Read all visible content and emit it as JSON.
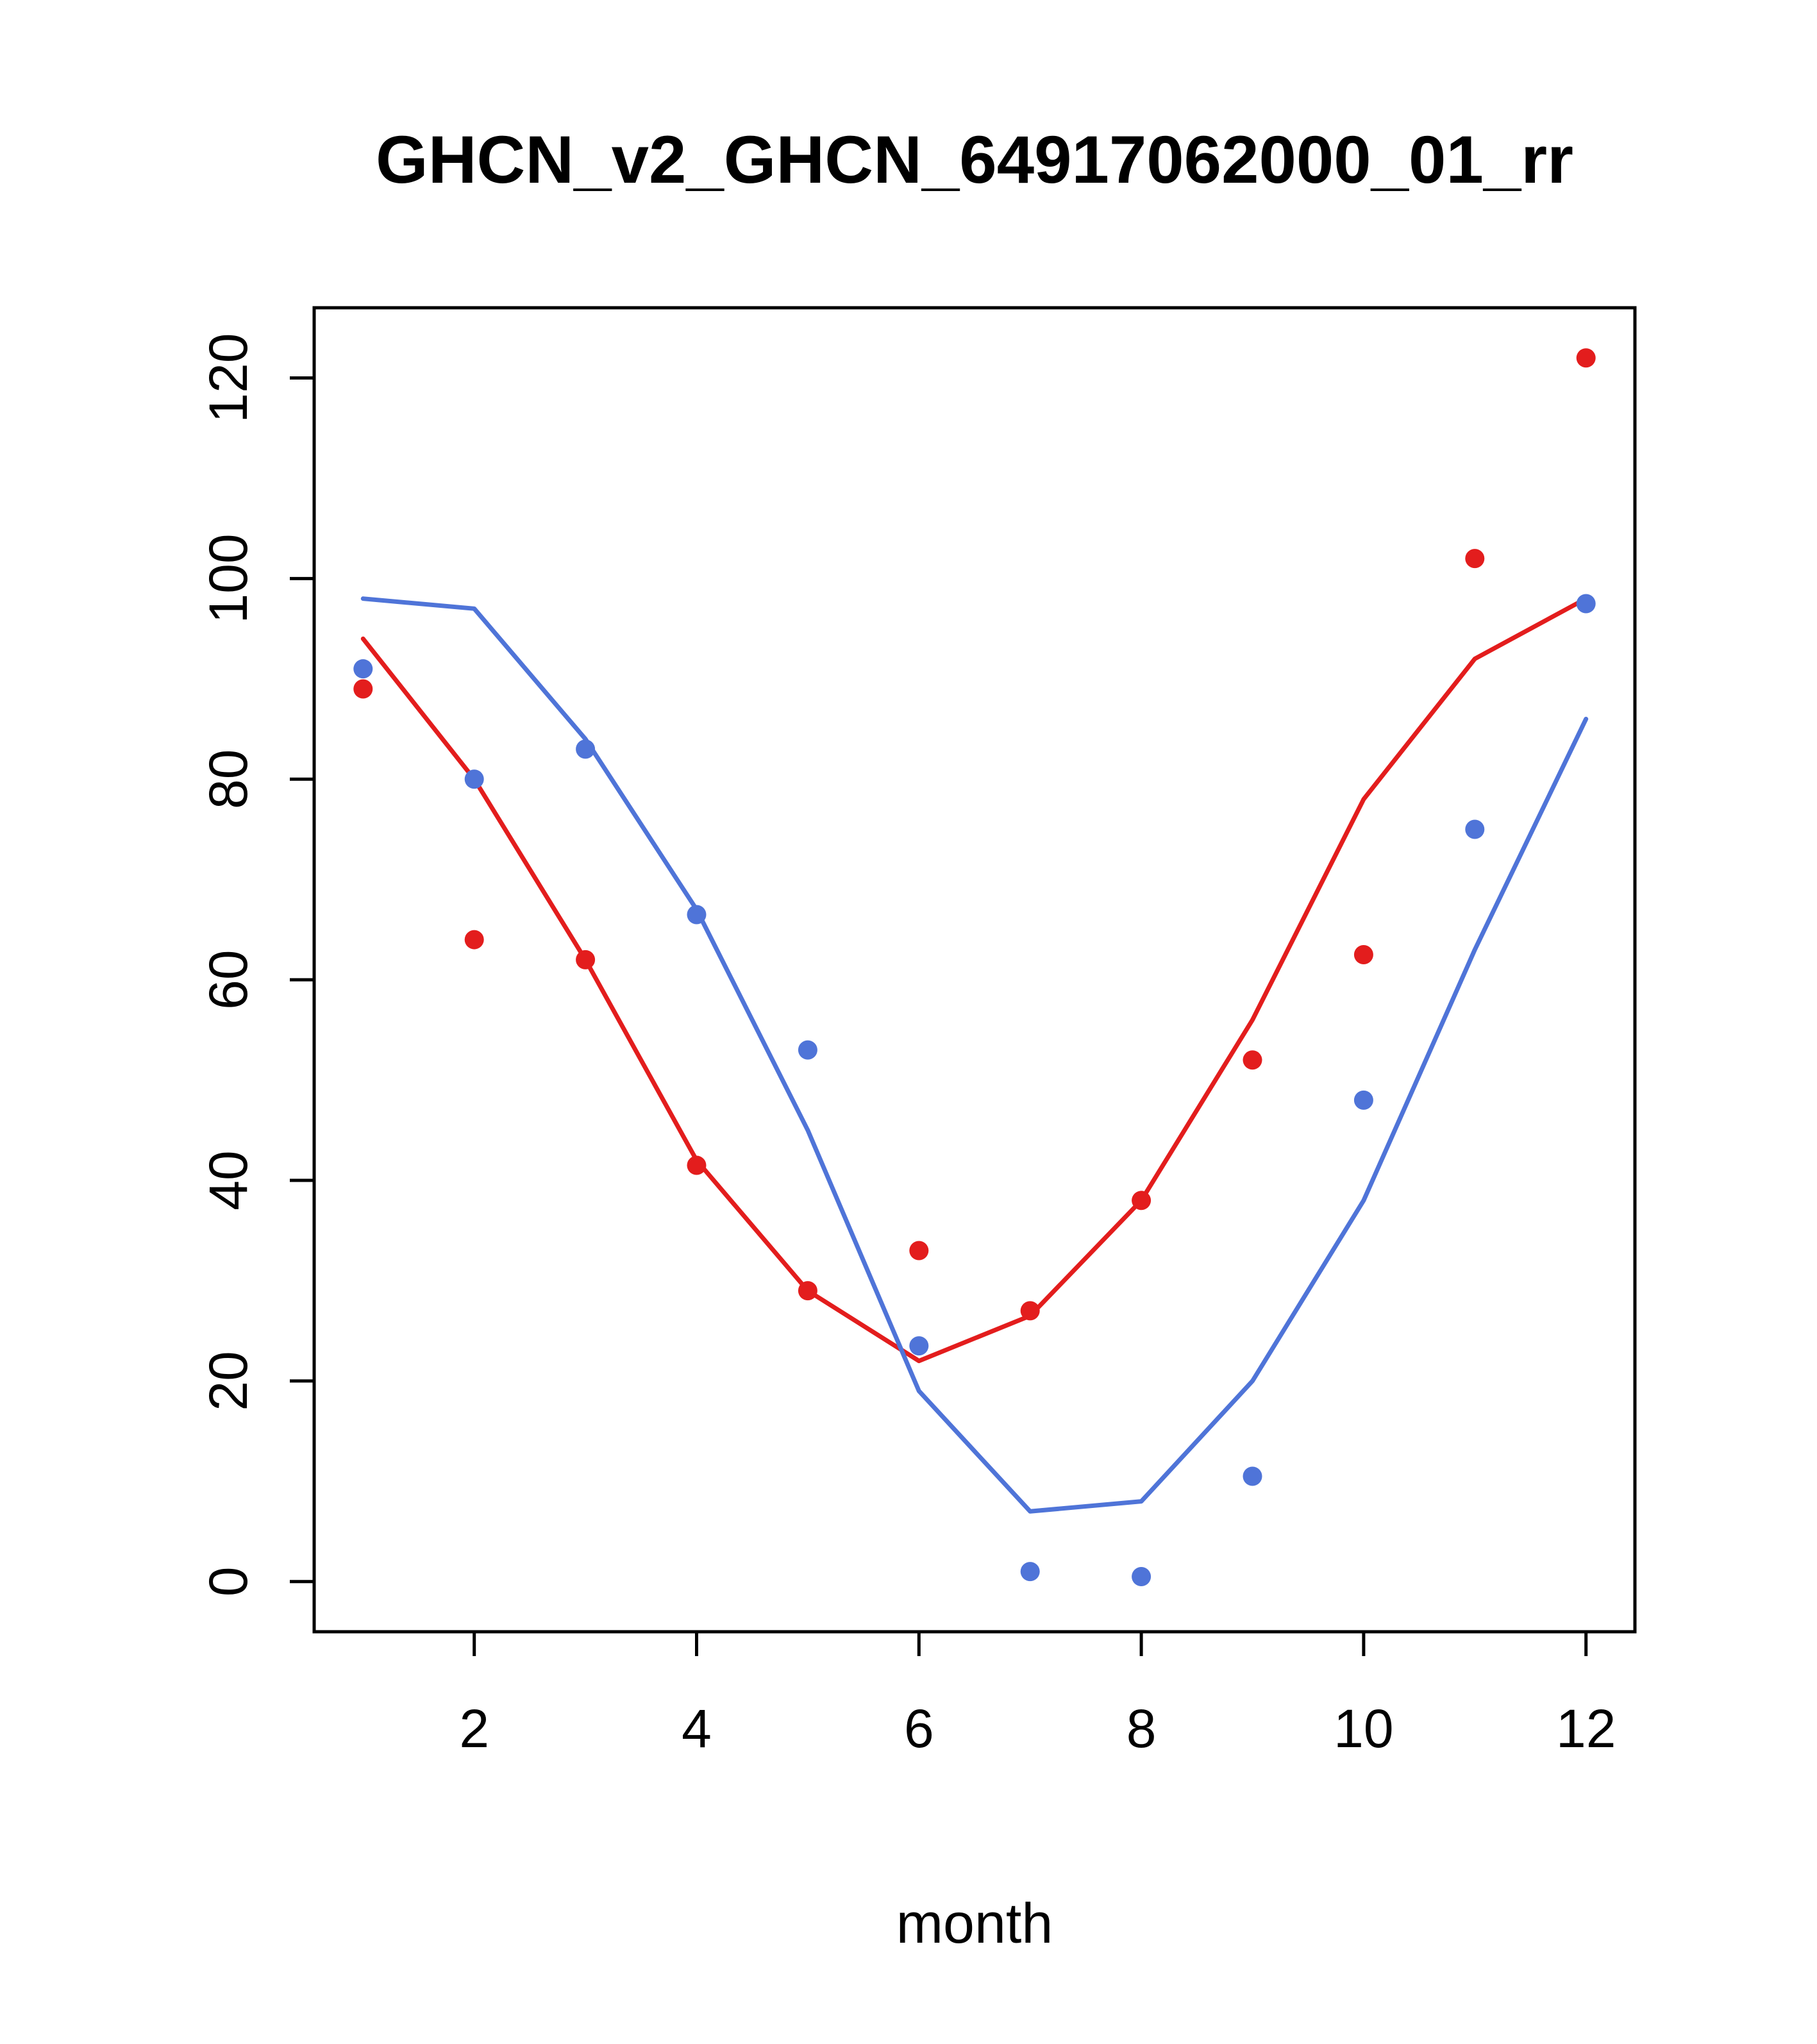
{
  "chart_data": {
    "type": "line",
    "title": "GHCN_v2_GHCN_64917062000_01_rr",
    "xlabel": "month",
    "ylabel": "",
    "x": [
      1,
      2,
      3,
      4,
      5,
      6,
      7,
      8,
      9,
      10,
      11,
      12
    ],
    "series": [
      {
        "name": "red-line",
        "type": "line",
        "color": "#e31d1d",
        "values": [
          94,
          80,
          62,
          42,
          29,
          22,
          26.5,
          38,
          56,
          78,
          92,
          98
        ]
      },
      {
        "name": "blue-line",
        "type": "line",
        "color": "#4f74d8",
        "values": [
          98,
          97,
          84,
          67,
          45,
          19,
          7,
          8,
          20,
          38,
          63,
          86
        ]
      },
      {
        "name": "red-points",
        "type": "scatter",
        "color": "#e31d1d",
        "values": [
          89,
          64,
          62,
          41.5,
          29,
          33,
          27,
          38,
          52,
          62.5,
          102,
          122
        ]
      },
      {
        "name": "blue-points",
        "type": "scatter",
        "color": "#4f74d8",
        "values": [
          91,
          80,
          83,
          66.5,
          53,
          23.5,
          1,
          0.5,
          10.5,
          48,
          75,
          97.5
        ]
      }
    ],
    "xticks": [
      2,
      4,
      6,
      8,
      10,
      12
    ],
    "yticks": [
      0,
      20,
      40,
      60,
      80,
      100,
      120
    ],
    "xlim": [
      0.56,
      12.44
    ],
    "ylim": [
      -5,
      127
    ],
    "grid": false,
    "legend": "none"
  }
}
